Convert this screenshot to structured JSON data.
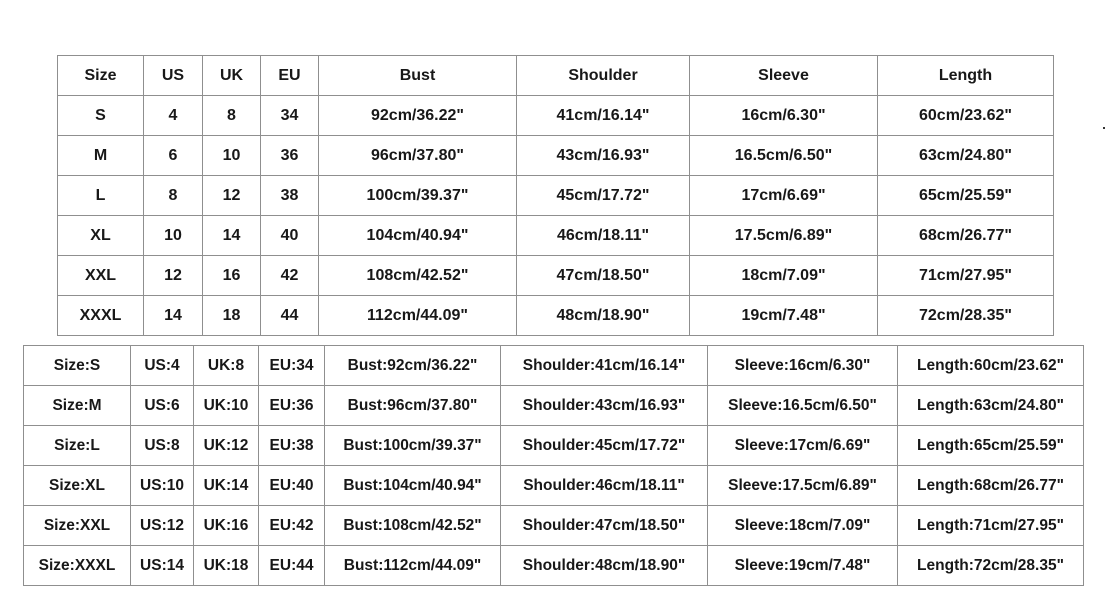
{
  "colors": {
    "background": "#ffffff",
    "grid_border": "#8f8f8f",
    "text": "#181818"
  },
  "chart_data": [
    {
      "type": "table",
      "columns": [
        "Size",
        "US",
        "UK",
        "EU",
        "Bust",
        "Shoulder",
        "Sleeve",
        "Length"
      ],
      "rows": [
        [
          "S",
          "4",
          "8",
          "34",
          "92cm/36.22\"",
          "41cm/16.14\"",
          "16cm/6.30\"",
          "60cm/23.62\""
        ],
        [
          "M",
          "6",
          "10",
          "36",
          "96cm/37.80\"",
          "43cm/16.93\"",
          "16.5cm/6.50\"",
          "63cm/24.80\""
        ],
        [
          "L",
          "8",
          "12",
          "38",
          "100cm/39.37\"",
          "45cm/17.72\"",
          "17cm/6.69\"",
          "65cm/25.59\""
        ],
        [
          "XL",
          "10",
          "14",
          "40",
          "104cm/40.94\"",
          "46cm/18.11\"",
          "17.5cm/6.89\"",
          "68cm/26.77\""
        ],
        [
          "XXL",
          "12",
          "16",
          "42",
          "108cm/42.52\"",
          "47cm/18.50\"",
          "18cm/7.09\"",
          "71cm/27.95\""
        ],
        [
          "XXXL",
          "14",
          "18",
          "44",
          "112cm/44.09\"",
          "48cm/18.90\"",
          "19cm/7.48\"",
          "72cm/28.35\""
        ]
      ]
    },
    {
      "type": "table",
      "rows": [
        [
          "Size:S",
          "US:4",
          "UK:8",
          "EU:34",
          "Bust:92cm/36.22\"",
          "Shoulder:41cm/16.14\"",
          "Sleeve:16cm/6.30\"",
          "Length:60cm/23.62\""
        ],
        [
          "Size:M",
          "US:6",
          "UK:10",
          "EU:36",
          "Bust:96cm/37.80\"",
          "Shoulder:43cm/16.93\"",
          "Sleeve:16.5cm/6.50\"",
          "Length:63cm/24.80\""
        ],
        [
          "Size:L",
          "US:8",
          "UK:12",
          "EU:38",
          "Bust:100cm/39.37\"",
          "Shoulder:45cm/17.72\"",
          "Sleeve:17cm/6.69\"",
          "Length:65cm/25.59\""
        ],
        [
          "Size:XL",
          "US:10",
          "UK:14",
          "EU:40",
          "Bust:104cm/40.94\"",
          "Shoulder:46cm/18.11\"",
          "Sleeve:17.5cm/6.89\"",
          "Length:68cm/26.77\""
        ],
        [
          "Size:XXL",
          "US:12",
          "UK:16",
          "EU:42",
          "Bust:108cm/42.52\"",
          "Shoulder:47cm/18.50\"",
          "Sleeve:18cm/7.09\"",
          "Length:71cm/27.95\""
        ],
        [
          "Size:XXXL",
          "US:14",
          "UK:18",
          "EU:44",
          "Bust:112cm/44.09\"",
          "Shoulder:48cm/18.90\"",
          "Sleeve:19cm/7.48\"",
          "Length:72cm/28.35\""
        ]
      ]
    }
  ]
}
